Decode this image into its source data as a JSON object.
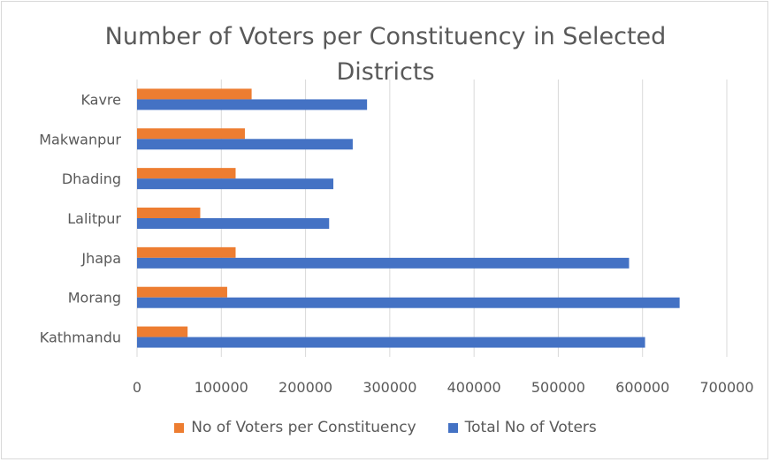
{
  "chart_data": {
    "type": "bar",
    "orientation": "horizontal",
    "title": "Number of Voters per Constituency in Selected Districts",
    "categories": [
      "Kathmandu",
      "Morang",
      "Jhapa",
      "Lalitpur",
      "Dhading",
      "Makwanpur",
      "Kavre"
    ],
    "series": [
      {
        "name": "No of Voters per Constituency",
        "color": "#ed7d31",
        "values": [
          60000,
          107000,
          117000,
          75000,
          117000,
          128000,
          136000
        ]
      },
      {
        "name": "Total No of Voters",
        "color": "#4472c4",
        "values": [
          603000,
          644000,
          584000,
          228000,
          233000,
          256000,
          273000
        ]
      }
    ],
    "xlim": [
      0,
      700000
    ],
    "xticks": [
      "0",
      "100000",
      "200000",
      "300000",
      "400000",
      "500000",
      "600000",
      "700000"
    ],
    "grid": true,
    "legend_position": "bottom"
  }
}
